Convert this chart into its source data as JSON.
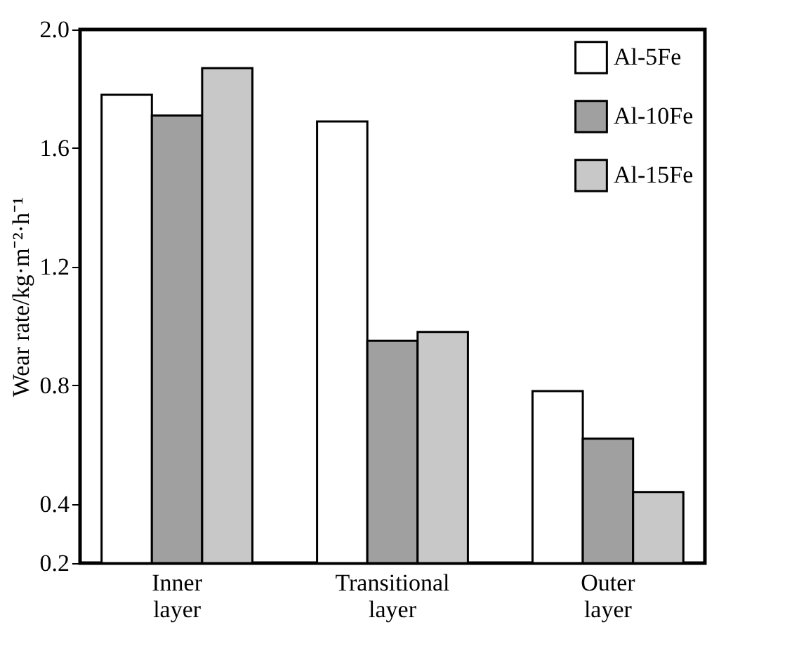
{
  "chart_data": {
    "type": "bar",
    "ylabel": "Wear rate/kg·m⁻²·h⁻¹",
    "categories": [
      "Inner layer",
      "Transitional layer",
      "Outer layer"
    ],
    "series": [
      {
        "name": "Al-5Fe",
        "color": "#ffffff",
        "values": [
          1.78,
          1.69,
          0.78
        ]
      },
      {
        "name": "Al-10Fe",
        "color": "#a0a0a0",
        "values": [
          1.71,
          0.95,
          0.62
        ]
      },
      {
        "name": "Al-15Fe",
        "color": "#c8c8c8",
        "values": [
          1.87,
          0.98,
          0.44
        ]
      }
    ],
    "ylim": [
      0.2,
      2.0
    ],
    "yticks": [
      {
        "value": 0.2,
        "label": "0.2"
      },
      {
        "value": 0.4,
        "label": "0.4"
      },
      {
        "value": 0.8,
        "label": "0.8"
      },
      {
        "value": 1.2,
        "label": "1.2"
      },
      {
        "value": 1.6,
        "label": "1.6"
      },
      {
        "value": 2.0,
        "label": "2.0"
      }
    ],
    "grid": false,
    "legend": "top right"
  }
}
